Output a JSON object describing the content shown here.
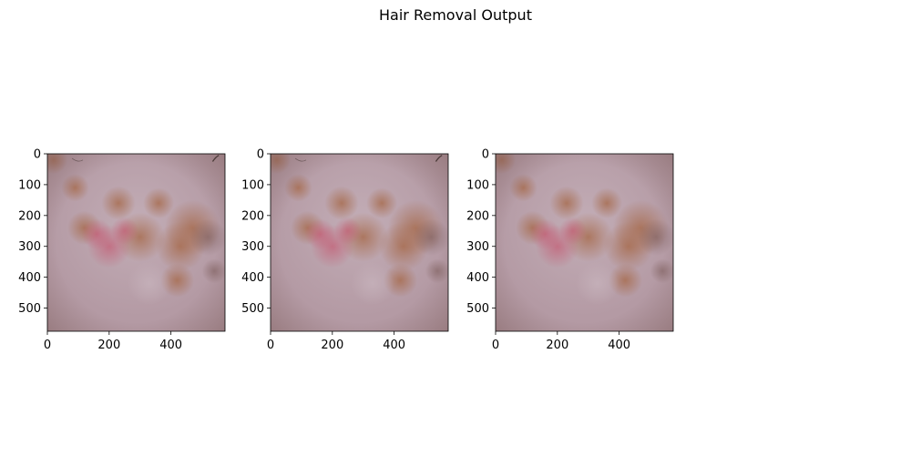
{
  "figure": {
    "title": "Hair Removal Output"
  },
  "chart_data": [
    {
      "type": "image",
      "title": "",
      "xlim": [
        0,
        575
      ],
      "ylim": [
        575,
        0
      ],
      "xticks": [
        0,
        200,
        400
      ],
      "yticks": [
        0,
        100,
        200,
        300,
        400,
        500
      ],
      "hairs_visible": true
    },
    {
      "type": "image",
      "title": "",
      "xlim": [
        0,
        575
      ],
      "ylim": [
        575,
        0
      ],
      "xticks": [
        0,
        200,
        400
      ],
      "yticks": [
        0,
        100,
        200,
        300,
        400,
        500
      ],
      "hairs_visible": true
    },
    {
      "type": "image",
      "title": "",
      "xlim": [
        0,
        575
      ],
      "ylim": [
        575,
        0
      ],
      "xticks": [
        0,
        200,
        400
      ],
      "yticks": [
        0,
        100,
        200,
        300,
        400,
        500
      ],
      "hairs_visible": false
    }
  ],
  "colors": {
    "skin_base": "#b49aa4",
    "skin_light": "#c6b2bb",
    "lesion_brown": "#a86e52",
    "lesion_red": "#c45a72",
    "border_dark": "#7a5a58",
    "hair": "#4a3a38"
  }
}
